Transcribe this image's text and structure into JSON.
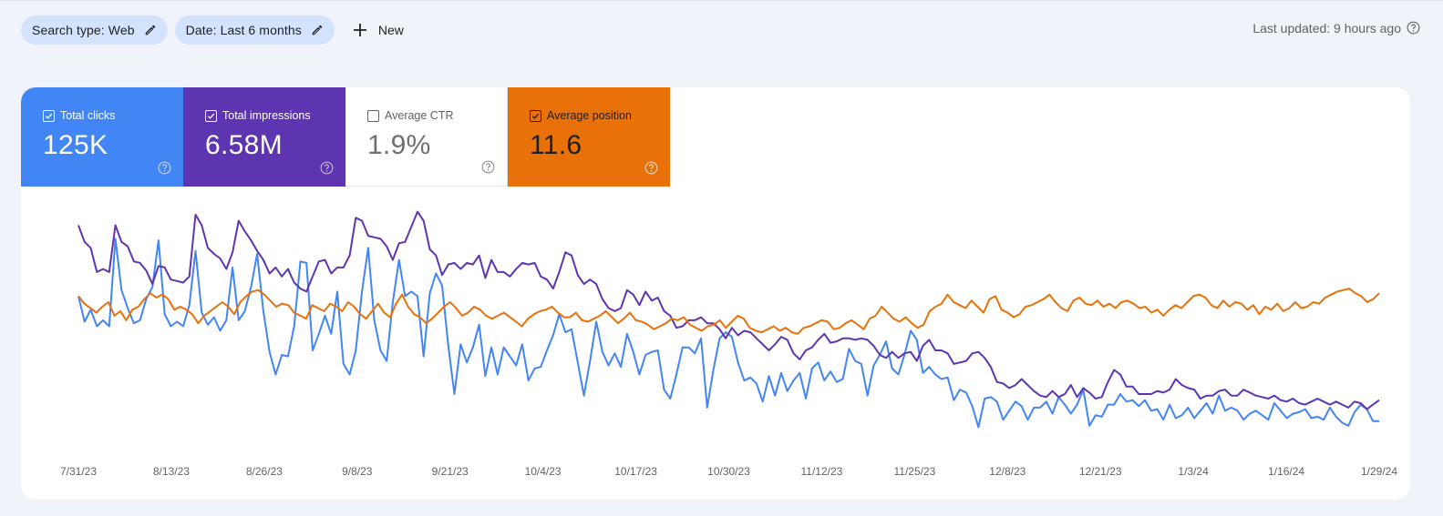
{
  "filters": {
    "chips": [
      {
        "label": "Search type: Web"
      },
      {
        "label": "Date: Last 6 months"
      }
    ],
    "new_label": "New"
  },
  "last_updated": "Last updated: 9 hours ago",
  "metrics": [
    {
      "label": "Total clicks",
      "value": "125K",
      "checked": true,
      "color": "#4285f4"
    },
    {
      "label": "Total impressions",
      "value": "6.58M",
      "checked": true,
      "color": "#5e35b1"
    },
    {
      "label": "Average CTR",
      "value": "1.9%",
      "checked": false,
      "color": "#ffffff"
    },
    {
      "label": "Average position",
      "value": "11.6",
      "checked": true,
      "color": "#e8710a"
    }
  ],
  "chart_data": {
    "type": "line",
    "x_tick_labels": [
      "7/31/23",
      "8/13/23",
      "8/26/23",
      "9/8/23",
      "9/21/23",
      "10/4/23",
      "10/17/23",
      "10/30/23",
      "11/12/23",
      "11/25/23",
      "12/8/23",
      "12/21/23",
      "1/3/24",
      "1/16/24",
      "1/29/24"
    ],
    "y_axis_visible": false,
    "grid": false,
    "series": [
      {
        "name": "Total clicks",
        "color": "#4285f4",
        "values": [
          100,
          83,
          91,
          80,
          84,
          80,
          138,
          104,
          92,
          82,
          84,
          98,
          106,
          137,
          88,
          80,
          83,
          80,
          94,
          130,
          89,
          81,
          86,
          77,
          84,
          119,
          84,
          90,
          106,
          128,
          90,
          63,
          48,
          61,
          60,
          80,
          123,
          122,
          64,
          75,
          87,
          75,
          103,
          55,
          48,
          64,
          103,
          132,
          84,
          64,
          57,
          96,
          124,
          100,
          103,
          100,
          60,
          102,
          115,
          107,
          67,
          35,
          68,
          56,
          66,
          81,
          47,
          66,
          48,
          66,
          60,
          54,
          68,
          44,
          52,
          53,
          64,
          74,
          88,
          76,
          78,
          56,
          34,
          57,
          83,
          63,
          54,
          62,
          53,
          75,
          63,
          48,
          61,
          63,
          64,
          38,
          32,
          48,
          66,
          66,
          62,
          72,
          26,
          51,
          72,
          76,
          73,
          56,
          44,
          46,
          42,
          30,
          47,
          34,
          49,
          37,
          44,
          49,
          32,
          52,
          56,
          44,
          50,
          43,
          45,
          65,
          57,
          55,
          34,
          54,
          61,
          70,
          52,
          48,
          61,
          77,
          71,
          49,
          53,
          48,
          45,
          46,
          31,
          38,
          36,
          27,
          13,
          32,
          33,
          30,
          18,
          24,
          30,
          27,
          18,
          26,
          26,
          30,
          22,
          33,
          28,
          22,
          28,
          38,
          14,
          21,
          20,
          28,
          28,
          35,
          30,
          31,
          27,
          31,
          24,
          25,
          18,
          28,
          19,
          21,
          26,
          19,
          24,
          29,
          22,
          34,
          24,
          26,
          24,
          18,
          22,
          24,
          21,
          18,
          29,
          24,
          19,
          22,
          23,
          25,
          19,
          20,
          18,
          26,
          20,
          16,
          14,
          23,
          28,
          25,
          17,
          17
        ]
      },
      {
        "name": "Total impressions",
        "color": "#5e35b1",
        "values": [
          147,
          136,
          132,
          116,
          118,
          116,
          147,
          136,
          133,
          123,
          122,
          117,
          108,
          120,
          119,
          111,
          110,
          109,
          113,
          154,
          147,
          132,
          128,
          125,
          118,
          129,
          150,
          143,
          137,
          130,
          124,
          115,
          119,
          113,
          118,
          109,
          105,
          103,
          113,
          123,
          124,
          115,
          119,
          119,
          127,
          152,
          150,
          140,
          139,
          138,
          133,
          124,
          135,
          136,
          146,
          156,
          150,
          131,
          127,
          114,
          121,
          122,
          118,
          122,
          121,
          127,
          112,
          124,
          116,
          116,
          113,
          118,
          122,
          121,
          122,
          113,
          111,
          105,
          116,
          129,
          127,
          114,
          108,
          111,
          108,
          98,
          92,
          90,
          92,
          104,
          101,
          94,
          103,
          97,
          99,
          90,
          87,
          79,
          80,
          84,
          84,
          86,
          82,
          82,
          78,
          72,
          79,
          74,
          77,
          76,
          72,
          68,
          64,
          68,
          73,
          71,
          62,
          58,
          64,
          66,
          71,
          75,
          69,
          70,
          72,
          72,
          71,
          72,
          71,
          67,
          61,
          59,
          63,
          59,
          62,
          63,
          57,
          67,
          71,
          64,
          64,
          62,
          55,
          56,
          57,
          62,
          63,
          59,
          53,
          43,
          42,
          39,
          41,
          45,
          41,
          37,
          34,
          33,
          37,
          33,
          35,
          41,
          33,
          39,
          36,
          32,
          33,
          43,
          51,
          48,
          40,
          40,
          35,
          35,
          35,
          37,
          36,
          38,
          45,
          41,
          39,
          38,
          32,
          34,
          34,
          37,
          38,
          34,
          34,
          38,
          36,
          34,
          33,
          32,
          34,
          31,
          30,
          32,
          29,
          28,
          30,
          32,
          30,
          28,
          30,
          28,
          26,
          30,
          29,
          25,
          28,
          31
        ]
      },
      {
        "name": "Average position",
        "color": "#e8710a",
        "values": [
          100,
          95,
          92,
          89,
          93,
          96,
          87,
          90,
          84,
          91,
          93,
          98,
          102,
          99,
          101,
          98,
          91,
          93,
          91,
          88,
          82,
          87,
          90,
          93,
          96,
          93,
          88,
          96,
          100,
          103,
          104,
          101,
          97,
          93,
          95,
          94,
          89,
          87,
          85,
          94,
          92,
          90,
          95,
          93,
          90,
          96,
          93,
          88,
          85,
          90,
          95,
          89,
          86,
          95,
          101,
          93,
          88,
          86,
          82,
          85,
          89,
          93,
          96,
          92,
          87,
          89,
          93,
          91,
          87,
          85,
          87,
          89,
          86,
          83,
          80,
          85,
          88,
          90,
          91,
          93,
          89,
          86,
          86,
          89,
          84,
          83,
          85,
          87,
          90,
          86,
          82,
          85,
          89,
          84,
          83,
          81,
          78,
          80,
          82,
          85,
          84,
          86,
          81,
          79,
          77,
          80,
          81,
          84,
          79,
          83,
          87,
          85,
          79,
          77,
          76,
          78,
          80,
          77,
          79,
          76,
          75,
          79,
          80,
          82,
          84,
          83,
          78,
          79,
          82,
          84,
          81,
          78,
          85,
          87,
          93,
          89,
          85,
          83,
          86,
          82,
          79,
          81,
          90,
          93,
          95,
          101,
          96,
          94,
          92,
          97,
          93,
          89,
          98,
          100,
          91,
          89,
          86,
          88,
          93,
          94,
          96,
          98,
          101,
          96,
          92,
          90,
          97,
          99,
          95,
          94,
          97,
          93,
          95,
          92,
          96,
          97,
          95,
          92,
          93,
          89,
          91,
          87,
          91,
          94,
          92,
          96,
          100,
          101,
          99,
          94,
          92,
          97,
          93,
          96,
          95,
          91,
          94,
          88,
          93,
          91,
          95,
          90,
          92,
          96,
          92,
          93,
          96,
          95,
          99,
          101,
          103,
          104,
          105,
          102,
          100,
          96,
          98,
          102
        ]
      }
    ]
  }
}
